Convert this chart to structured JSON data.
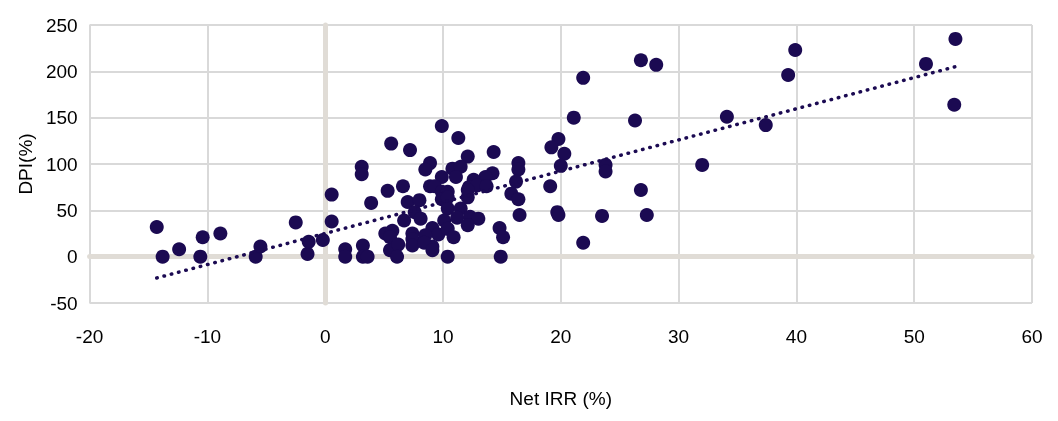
{
  "chart_data": {
    "type": "scatter",
    "xlabel": "Net IRR (%)",
    "ylabel": "DPI(%)",
    "xlim": [
      -20,
      60
    ],
    "xticks": [
      -20,
      -10,
      0,
      10,
      20,
      30,
      40,
      50,
      60
    ],
    "ylim": [
      -50,
      250
    ],
    "yticks": [
      -50,
      0,
      50,
      100,
      150,
      200,
      250
    ],
    "grid": true,
    "marker": "circle",
    "series": [
      {
        "color": "#1b0a52",
        "x": [
          -14.3,
          -13.8,
          -12.4,
          -10.6,
          -10.4,
          -8.9,
          -5.9,
          -5.5,
          -2.5,
          -1.5,
          -1.4,
          -0.2,
          0.55,
          0.55,
          3.9,
          1.7,
          1.7,
          3.2,
          3.2,
          3.6,
          9.9,
          11.3,
          5.6,
          7.2,
          12.1,
          14.3,
          3.1,
          3.1,
          8.9,
          8.5,
          10.8,
          11.5,
          9.9,
          11.1,
          16.4,
          16.4,
          14.2,
          13.6,
          12.6,
          12.2,
          12.9,
          13.7,
          16.2,
          8.9,
          9.3,
          6.6,
          5.3,
          7.0,
          8.0,
          9.9,
          10.4,
          9.9,
          10.4,
          10.4,
          12.1,
          12.1,
          15.8,
          16.4,
          7.6,
          8.1,
          6.7,
          11.5,
          10.1,
          11.2,
          12.3,
          13.0,
          12.1,
          16.5,
          14.8,
          15.1,
          5.1,
          5.7,
          5.5,
          7.4,
          7.4,
          9.1,
          9.6,
          10.4,
          8.5,
          10.9,
          5.5,
          6.2,
          7.4,
          9.1,
          8.4,
          9.1,
          6.1,
          10.4,
          14.9,
          26.8,
          28.1,
          21.9,
          21.1,
          26.3,
          34.1,
          37.4,
          19.8,
          19.2,
          20.3,
          20.0,
          23.8,
          23.8,
          32.0,
          19.1,
          19.7,
          19.8,
          23.5,
          26.8,
          27.3,
          21.9,
          53.5,
          39.9,
          51.0,
          39.3,
          53.4
        ],
        "values": [
          32,
          0,
          8,
          0,
          21,
          25,
          0,
          11,
          37,
          3,
          16,
          18,
          67,
          38,
          58,
          8,
          0,
          12,
          0,
          0,
          141,
          128,
          122,
          115,
          108,
          113,
          97,
          89,
          101,
          94,
          95,
          97,
          86,
          86,
          101,
          94,
          90,
          86,
          83,
          75,
          77,
          76,
          81,
          76,
          76,
          76,
          71,
          59,
          61,
          70,
          70,
          62,
          64,
          52,
          64,
          72,
          68,
          62,
          48,
          41,
          39,
          52,
          39,
          42,
          43,
          41,
          34,
          45,
          31,
          21,
          25,
          28,
          21,
          25,
          19,
          31,
          24,
          30,
          23,
          21,
          7,
          13,
          12,
          11,
          15,
          7,
          0,
          0,
          0,
          212,
          207,
          193,
          150,
          147,
          151,
          142,
          127,
          118,
          111,
          98,
          99,
          92,
          99,
          76,
          48,
          45,
          44,
          72,
          45,
          15,
          235,
          223,
          208,
          196,
          164
        ]
      },
      {
        "type": "line",
        "color": "#1b0a52",
        "line_style": "dotted",
        "marker": "none",
        "x": [
          -14.3,
          53.5
        ],
        "values": [
          -23,
          205
        ]
      }
    ]
  }
}
